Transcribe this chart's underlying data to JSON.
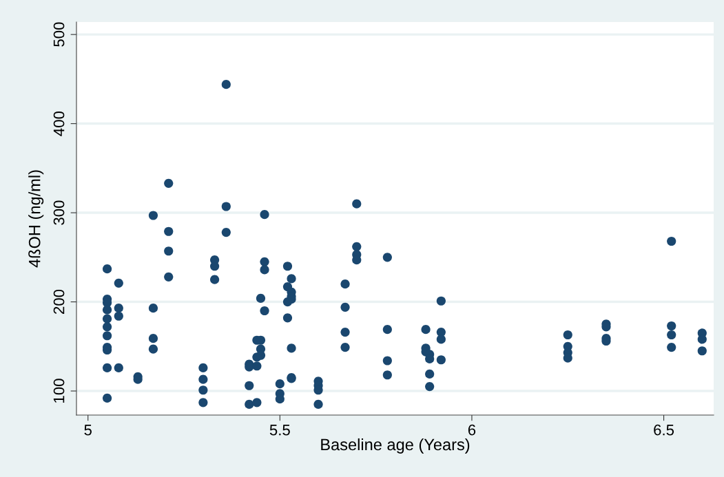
{
  "chart_data": {
    "type": "scatter",
    "xlabel": "Baseline age (Years)",
    "ylabel": "4ßOH (ng/ml)",
    "x": [
      5.05,
      5.05,
      5.05,
      5.05,
      5.05,
      5.05,
      5.05,
      5.05,
      5.05,
      5.05,
      5.05,
      5.08,
      5.08,
      5.08,
      5.08,
      5.13,
      5.13,
      5.17,
      5.17,
      5.17,
      5.17,
      5.21,
      5.21,
      5.21,
      5.21,
      5.3,
      5.3,
      5.3,
      5.3,
      5.33,
      5.33,
      5.33,
      5.36,
      5.36,
      5.36,
      5.42,
      5.42,
      5.42,
      5.42,
      5.44,
      5.44,
      5.44,
      5.44,
      5.45,
      5.45,
      5.45,
      5.45,
      5.46,
      5.46,
      5.46,
      5.46,
      5.5,
      5.5,
      5.5,
      5.52,
      5.52,
      5.52,
      5.52,
      5.53,
      5.53,
      5.53,
      5.53,
      5.53,
      5.53,
      5.53,
      5.6,
      5.6,
      5.6,
      5.6,
      5.67,
      5.67,
      5.67,
      5.67,
      5.7,
      5.7,
      5.7,
      5.7,
      5.78,
      5.78,
      5.78,
      5.78,
      5.88,
      5.88,
      5.88,
      5.89,
      5.89,
      5.89,
      5.89,
      5.92,
      5.92,
      5.92,
      5.92,
      6.25,
      6.25,
      6.25,
      6.25,
      6.35,
      6.35,
      6.35,
      6.35,
      6.52,
      6.52,
      6.52,
      6.52,
      6.6,
      6.6,
      6.6
    ],
    "series": [
      {
        "color": "#1a476f",
        "values": [
          237,
          203,
          199,
          191,
          181,
          172,
          162,
          149,
          146,
          126,
          92,
          221,
          193,
          184,
          126,
          116,
          113,
          297,
          193,
          159,
          147,
          333,
          279,
          257,
          228,
          126,
          113,
          101,
          87,
          247,
          240,
          225,
          444,
          307,
          278,
          130,
          127,
          106,
          85,
          157,
          138,
          128,
          87,
          204,
          157,
          147,
          140,
          298,
          245,
          236,
          190,
          108,
          97,
          91,
          240,
          217,
          200,
          182,
          226,
          211,
          206,
          203,
          148,
          115,
          114,
          111,
          106,
          101,
          85,
          220,
          194,
          166,
          149,
          310,
          262,
          253,
          247,
          250,
          169,
          134,
          118,
          169,
          148,
          144,
          141,
          136,
          119,
          105,
          201,
          166,
          158,
          135,
          163,
          150,
          143,
          137,
          175,
          172,
          159,
          156,
          268,
          173,
          163,
          149,
          165,
          158,
          145
        ]
      }
    ],
    "xlim": [
      4.97,
      6.63
    ],
    "ylim": [
      73,
      514
    ],
    "xticks": [
      5,
      5.5,
      6,
      6.5
    ],
    "yticks": [
      100,
      200,
      300,
      400,
      500
    ],
    "grid": "y",
    "marker": "circle"
  }
}
